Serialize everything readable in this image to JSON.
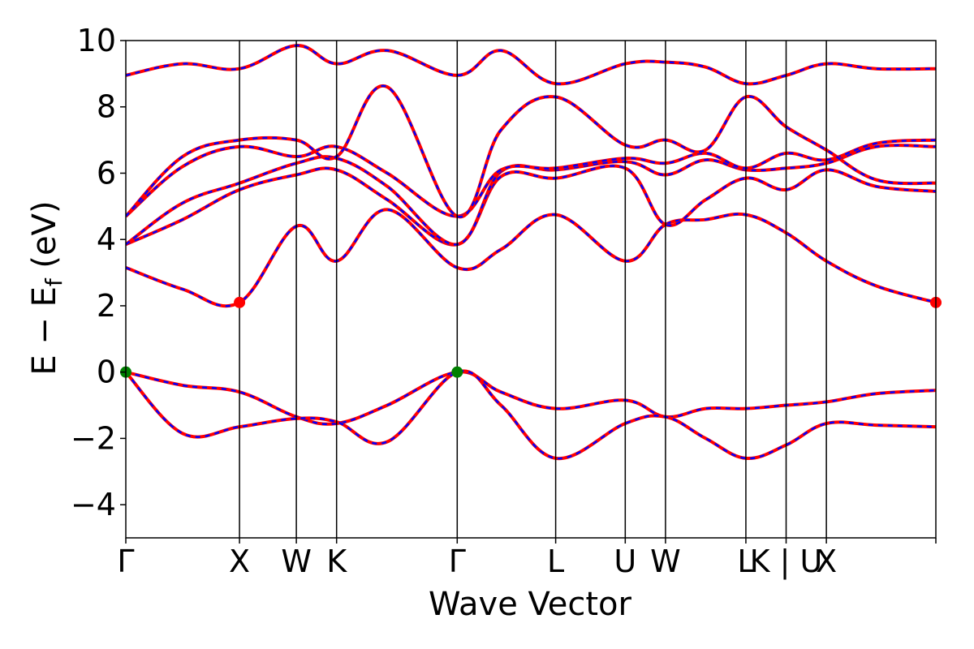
{
  "chart_data": {
    "type": "line",
    "title": "",
    "xlabel": "Wave Vector",
    "ylabel": "E − E_f (eV)",
    "ylabel_main": "E − E",
    "ylabel_sub": "f",
    "ylabel_tail": " (eV)",
    "ylim": [
      -5,
      10
    ],
    "yticks": [
      -4,
      -2,
      0,
      2,
      4,
      6,
      8,
      10
    ],
    "ytick_labels": [
      "−4",
      "−2",
      "0",
      "2",
      "4",
      "6",
      "8",
      "10"
    ],
    "xlim": [
      0,
      7.125
    ],
    "kpoints": [
      {
        "label": "Γ",
        "x": 0.0
      },
      {
        "label": "X",
        "x": 1.0
      },
      {
        "label": "W",
        "x": 1.5
      },
      {
        "label": "K",
        "x": 1.854
      },
      {
        "label": "Γ",
        "x": 2.915
      },
      {
        "label": "L",
        "x": 3.781
      },
      {
        "label": "U",
        "x": 4.393
      },
      {
        "label": "W",
        "x": 4.747
      },
      {
        "label": "L",
        "x": 5.454
      },
      {
        "label": "K | U",
        "x": 5.808
      },
      {
        "label": "X",
        "x": 6.162
      }
    ],
    "grid": false,
    "legend": "none",
    "colors": {
      "band_solid": "#ff0000",
      "band_dashed": "#0000ff",
      "cbm_marker": "#ff0000",
      "vbm_marker": "#008000",
      "vline": "#000000"
    },
    "markers": [
      {
        "kind": "cbm",
        "x": 1.0,
        "y": 2.1
      },
      {
        "kind": "cbm",
        "x": 7.125,
        "y": 2.1
      },
      {
        "kind": "vbm",
        "x": 0.0,
        "y": 0.0
      },
      {
        "kind": "vbm",
        "x": 2.915,
        "y": 0.0
      }
    ],
    "series": [
      {
        "x": [
          0,
          0.5,
          1.0,
          1.5,
          1.854,
          2.3,
          2.915,
          3.3,
          3.781,
          4.393,
          4.747,
          5.1,
          5.454,
          5.808,
          6.162,
          6.6,
          7.125
        ],
        "y": [
          0,
          -0.4,
          -0.6,
          -1.35,
          -1.55,
          -1.0,
          0,
          -0.6,
          -1.1,
          -0.85,
          -1.35,
          -1.1,
          -1.1,
          -1.0,
          -0.9,
          -0.65,
          -0.55
        ]
      },
      {
        "x": [
          0,
          0.5,
          1.0,
          1.5,
          1.854,
          2.3,
          2.915,
          3.3,
          3.781,
          4.393,
          4.747,
          5.1,
          5.454,
          5.808,
          6.162,
          6.6,
          7.125
        ],
        "y": [
          0,
          -1.85,
          -1.65,
          -1.4,
          -1.5,
          -2.1,
          0,
          -1.0,
          -2.6,
          -1.55,
          -1.35,
          -2.0,
          -2.6,
          -2.2,
          -1.55,
          -1.6,
          -1.65
        ]
      },
      {
        "x": [
          0,
          0.5,
          1.0,
          1.5,
          1.854,
          2.3,
          2.915,
          3.3,
          3.781,
          4.393,
          4.747,
          5.1,
          5.454,
          5.808,
          6.162,
          6.6,
          7.125
        ],
        "y": [
          3.15,
          2.5,
          2.1,
          4.4,
          3.35,
          4.9,
          3.15,
          3.7,
          4.75,
          3.35,
          4.45,
          4.6,
          4.75,
          4.2,
          3.35,
          2.6,
          2.1
        ]
      },
      {
        "x": [
          0,
          0.5,
          1.0,
          1.5,
          1.854,
          2.3,
          2.915,
          3.3,
          3.781,
          4.393,
          4.747,
          5.1,
          5.454,
          5.808,
          6.162,
          6.6,
          7.125
        ],
        "y": [
          3.85,
          4.6,
          5.5,
          5.95,
          6.1,
          5.2,
          3.85,
          5.9,
          5.85,
          6.15,
          4.45,
          5.2,
          5.85,
          5.5,
          6.1,
          5.6,
          5.45
        ]
      },
      {
        "x": [
          0,
          0.5,
          1.0,
          1.5,
          1.854,
          2.3,
          2.915,
          3.3,
          3.781,
          4.393,
          4.747,
          5.1,
          5.454,
          5.808,
          6.162,
          6.6,
          7.125
        ],
        "y": [
          3.85,
          5.1,
          5.7,
          6.3,
          6.45,
          5.6,
          3.85,
          6.05,
          6.1,
          6.35,
          5.95,
          6.4,
          6.1,
          6.15,
          6.3,
          6.8,
          6.8
        ]
      },
      {
        "x": [
          0,
          0.5,
          1.0,
          1.5,
          1.854,
          2.3,
          2.915,
          3.3,
          3.781,
          4.393,
          4.747,
          5.1,
          5.454,
          5.808,
          6.162,
          6.6,
          7.125
        ],
        "y": [
          4.7,
          6.2,
          6.8,
          6.5,
          6.8,
          6.0,
          4.7,
          6.1,
          6.15,
          6.45,
          6.3,
          6.6,
          6.15,
          6.6,
          6.4,
          6.9,
          7.0
        ]
      },
      {
        "x": [
          0,
          0.5,
          1.0,
          1.5,
          1.854,
          2.3,
          2.915,
          3.3,
          3.781,
          4.393,
          4.747,
          5.1,
          5.454,
          5.808,
          6.162,
          6.6,
          7.125
        ],
        "y": [
          4.7,
          6.5,
          7.0,
          7.0,
          6.5,
          8.6,
          4.7,
          7.3,
          8.3,
          6.85,
          7.0,
          6.7,
          8.3,
          7.4,
          6.7,
          5.8,
          5.7
        ]
      },
      {
        "x": [
          0,
          0.5,
          1.0,
          1.5,
          1.854,
          2.3,
          2.915,
          3.3,
          3.781,
          4.393,
          4.747,
          5.1,
          5.454,
          5.808,
          6.162,
          6.6,
          7.125
        ],
        "y": [
          8.95,
          9.3,
          9.15,
          9.85,
          9.3,
          9.7,
          8.95,
          9.7,
          8.7,
          9.3,
          9.35,
          9.2,
          8.7,
          8.95,
          9.3,
          9.15,
          9.15
        ]
      }
    ]
  }
}
